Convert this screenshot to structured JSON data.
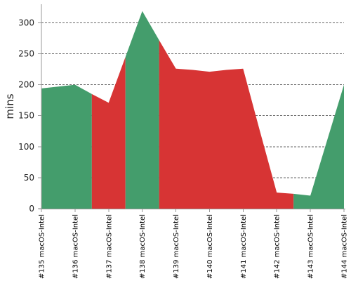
{
  "chart_data": {
    "type": "area",
    "ylabel": "mins",
    "ylim": [
      0,
      330
    ],
    "yticks": [
      0,
      50,
      100,
      150,
      200,
      250,
      300
    ],
    "grid": true,
    "categories": [
      "#135 macOS-Intel",
      "#136 macOS-Intel",
      "#137 macOS-Intel",
      "#138 macOS-Intel",
      "#139 macOS-Intel",
      "#140 macOS-Intel",
      "#141 macOS-Intel",
      "#142 macOS-Intel",
      "#143 macOS-Intel",
      "#144 macOS-Intel"
    ],
    "points": [
      {
        "x": 0.0,
        "y": 194
      },
      {
        "x": 1.0,
        "y": 200
      },
      {
        "x": 1.5,
        "y": 185
      },
      {
        "x": 2.0,
        "y": 171
      },
      {
        "x": 2.5,
        "y": 245
      },
      {
        "x": 3.0,
        "y": 319
      },
      {
        "x": 3.5,
        "y": 272
      },
      {
        "x": 4.0,
        "y": 226
      },
      {
        "x": 4.5,
        "y": 224
      },
      {
        "x": 5.0,
        "y": 221
      },
      {
        "x": 5.5,
        "y": 224
      },
      {
        "x": 6.0,
        "y": 226
      },
      {
        "x": 6.5,
        "y": 125
      },
      {
        "x": 7.0,
        "y": 26
      },
      {
        "x": 7.5,
        "y": 24
      },
      {
        "x": 8.0,
        "y": 21
      },
      {
        "x": 9.0,
        "y": 200
      }
    ],
    "bands": [
      {
        "from": 0.0,
        "to": 1.5,
        "status": "pass"
      },
      {
        "from": 1.5,
        "to": 2.5,
        "status": "fail"
      },
      {
        "from": 2.5,
        "to": 3.5,
        "status": "pass"
      },
      {
        "from": 3.5,
        "to": 7.5,
        "status": "fail"
      },
      {
        "from": 7.5,
        "to": 9.0,
        "status": "pass"
      }
    ],
    "colors": {
      "pass": "#449d6c",
      "fail": "#d73434",
      "grid": "#666666",
      "axis": "#999999"
    }
  }
}
